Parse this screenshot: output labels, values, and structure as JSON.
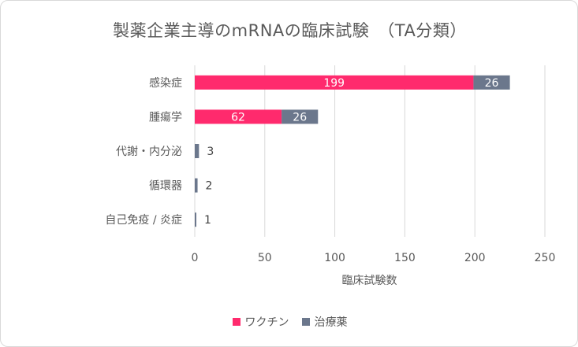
{
  "chart_data": {
    "type": "bar",
    "orientation": "horizontal",
    "stacked": true,
    "title": "製薬企業主導のmRNAの臨床試験　（TA分類）",
    "xlabel": "臨床試験数",
    "ylabel": "",
    "categories": [
      "感染症",
      "腫瘍学",
      "代謝・内分泌",
      "循環器",
      "自己免疫 / 炎症"
    ],
    "series": [
      {
        "name": "ワクチン",
        "color": "#ff2a6d",
        "values": [
          199,
          62,
          0,
          0,
          0
        ]
      },
      {
        "name": "治療薬",
        "color": "#6b778c",
        "values": [
          26,
          26,
          3,
          2,
          1
        ]
      }
    ],
    "xlim": [
      0,
      250
    ],
    "xticks": [
      0,
      50,
      100,
      150,
      200,
      250
    ],
    "grid": true,
    "legend_position": "bottom"
  }
}
